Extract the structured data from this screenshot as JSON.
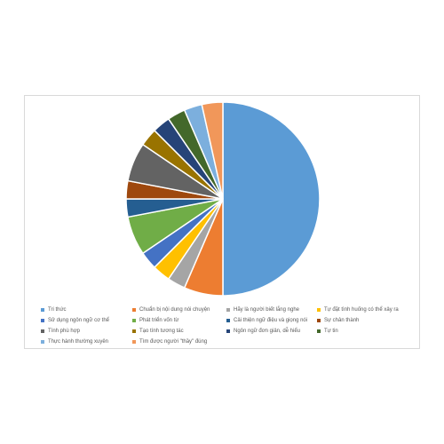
{
  "chart_data": {
    "type": "pie",
    "title": "",
    "legend_position": "bottom",
    "series": [
      {
        "values": [
          50,
          6.5,
          3,
          3,
          3,
          6.5,
          3,
          3,
          6.5,
          3,
          3,
          3,
          3,
          3.5
        ],
        "colors": [
          "#5b9bd5",
          "#ed7d31",
          "#a5a5a5",
          "#ffc000",
          "#4472c4",
          "#70ad47",
          "#255e91",
          "#9e480e",
          "#636363",
          "#997300",
          "#264478",
          "#43682b",
          "#7cafdd",
          "#f1975a"
        ]
      }
    ],
    "categories": [
      "Tri thức",
      "Chuẩn bị nội dung nói chuyện",
      "Hãy là người biết lắng nghe",
      "Tự đặt tình huống có thể xảy ra",
      "Sử dụng ngôn ngữ cơ thể",
      "Phát triển vốn từ",
      "Cải thiện ngữ điệu và giọng nói",
      "Sự chân thành",
      "Tính phù hợp",
      "Tạo tính tương tác",
      "Ngôn ngữ đơn giản, dễ hiểu",
      "Tự tin",
      "Thực hành thường xuyên",
      "Tìm được người \"thầy\" đúng"
    ]
  }
}
